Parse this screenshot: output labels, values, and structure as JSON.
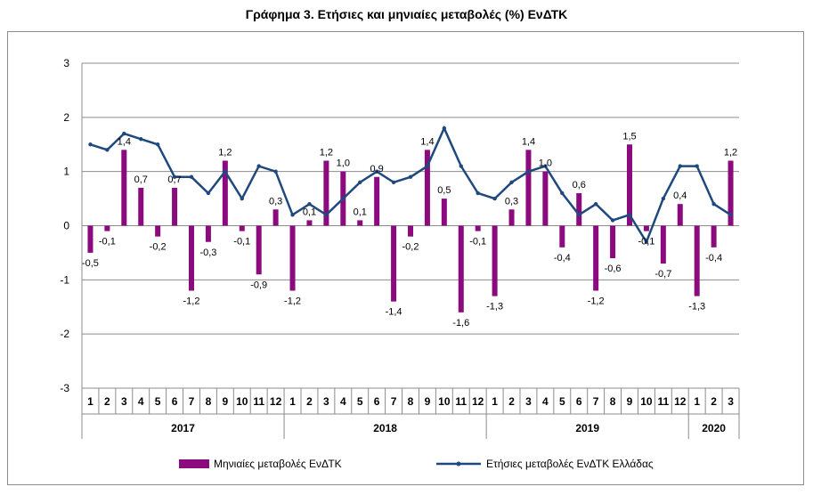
{
  "chart_data": {
    "type": "bar+line",
    "title": "Γράφημα 3. Ετήσιες και μηνιαίες μεταβολές (%) ΕνΔΤΚ",
    "xlabel": "",
    "ylabel": "",
    "ylim": [
      -3,
      3
    ],
    "yticks": [
      "3",
      "2",
      "1",
      "0",
      "-1",
      "-2",
      "-3"
    ],
    "grid": true,
    "legend_position": "bottom",
    "years": [
      {
        "label": "2017",
        "months": 12
      },
      {
        "label": "2018",
        "months": 12
      },
      {
        "label": "2019",
        "months": 12
      },
      {
        "label": "2020",
        "months": 3
      }
    ],
    "categories": [
      "1",
      "2",
      "3",
      "4",
      "5",
      "6",
      "7",
      "8",
      "9",
      "10",
      "11",
      "12",
      "1",
      "2",
      "3",
      "4",
      "5",
      "6",
      "7",
      "8",
      "9",
      "10",
      "11",
      "12",
      "1",
      "2",
      "3",
      "4",
      "5",
      "6",
      "7",
      "8",
      "9",
      "10",
      "11",
      "12",
      "1",
      "2",
      "3"
    ],
    "series": [
      {
        "name": "Μηνιαίες μεταβολές ΕνΔΤΚ",
        "kind": "bar",
        "color": "#8B0A7E",
        "values": [
          -0.5,
          -0.1,
          1.4,
          0.7,
          -0.2,
          0.7,
          -1.2,
          -0.3,
          1.2,
          -0.1,
          -0.9,
          0.3,
          -1.2,
          0.1,
          1.2,
          1.0,
          0.1,
          0.9,
          -1.4,
          -0.2,
          1.4,
          0.5,
          -1.6,
          -0.1,
          -1.3,
          0.3,
          1.4,
          1.0,
          -0.4,
          0.6,
          -1.2,
          -0.6,
          1.5,
          -0.1,
          -0.7,
          0.4,
          -1.3,
          -0.4,
          1.2
        ],
        "labels": [
          "-0,5",
          "-0,1",
          "1,4",
          "0,7",
          "-0,2",
          "0,7",
          "-1,2",
          "-0,3",
          "1,2",
          "-0,1",
          "-0,9",
          "0,3",
          "-1,2",
          "0,1",
          "1,2",
          "1,0",
          "0,1",
          "0,9",
          "-1,4",
          "-0,2",
          "1,4",
          "0,5",
          "-1,6",
          "-0,1",
          "-1,3",
          "0,3",
          "1,4",
          "1,0",
          "-0,4",
          "0,6",
          "-1,2",
          "-0,6",
          "1,5",
          "-0,1",
          "-0,7",
          "0,4",
          "-1,3",
          "-0,4",
          "1,2"
        ]
      },
      {
        "name": "Ετήσιες μεταβολές ΕνΔΤΚ Ελλάδας",
        "kind": "line",
        "color": "#1F497D",
        "values": [
          1.5,
          1.4,
          1.7,
          1.6,
          1.5,
          0.9,
          0.9,
          0.6,
          1.0,
          0.5,
          1.1,
          1.0,
          0.2,
          0.4,
          0.2,
          0.5,
          0.8,
          1.0,
          0.8,
          0.9,
          1.1,
          1.8,
          1.1,
          0.6,
          0.5,
          0.8,
          1.0,
          1.1,
          0.6,
          0.2,
          0.4,
          0.1,
          0.2,
          -0.3,
          0.5,
          1.1,
          1.1,
          0.4,
          0.2
        ]
      }
    ]
  }
}
